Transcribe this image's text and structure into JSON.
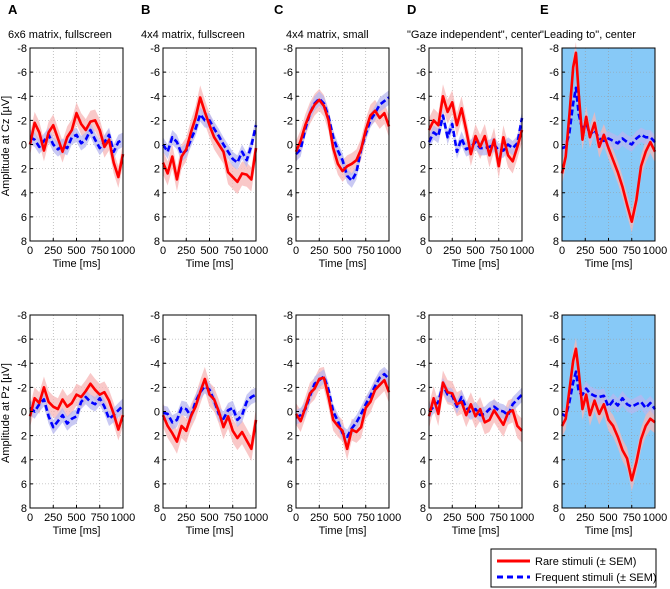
{
  "figure": {
    "row_labels": [
      "Amplitude at Cz [µV]",
      "Amplitude at Pz [µV]"
    ],
    "xlabel": "Time [ms]",
    "y_ticks": [
      "-8",
      "-6",
      "-4",
      "-2",
      "0",
      "2",
      "4",
      "6",
      "8"
    ],
    "x_ticks": [
      "0",
      "250",
      "500",
      "750",
      "1000"
    ],
    "panels": [
      {
        "letter": "A",
        "title": "6x6 matrix, fullscreen"
      },
      {
        "letter": "B",
        "title": "4x4 matrix, fullscreen"
      },
      {
        "letter": "C",
        "title": "4x4 matrix, small"
      },
      {
        "letter": "D",
        "title": "\"Gaze independent\", center"
      },
      {
        "letter": "E",
        "title": "\"Leading to\", center"
      }
    ],
    "legend": {
      "rare": "Rare stimuli (± SEM)",
      "frequent": "Frequent stimuli (± SEM)"
    }
  },
  "colors": {
    "rare": "#ff0000",
    "rare_sem": "#f7b5b5",
    "frequent": "#0000ff",
    "frequent_sem": "#b7b7ef",
    "highlight_bg": "#87c9f7",
    "grid": "#9a9a9a"
  },
  "chart_data": [
    {
      "type": "line",
      "panel": "A",
      "row": "Cz",
      "xlim": [
        0,
        1000
      ],
      "ylim": [
        -8,
        8
      ],
      "y_reversed": true,
      "grid": true,
      "x": [
        0,
        50,
        100,
        150,
        200,
        250,
        300,
        350,
        400,
        450,
        500,
        550,
        600,
        650,
        700,
        750,
        800,
        850,
        900,
        950,
        1000
      ],
      "series": [
        {
          "name": "Rare stimuli",
          "values": [
            0,
            -1.8,
            -1,
            0.5,
            -1,
            -1.6,
            -0.5,
            0.6,
            -0.6,
            -1.2,
            -2.6,
            -1.7,
            -1.2,
            -1.9,
            -2,
            -1.2,
            0.2,
            -0.4,
            1.5,
            2.7,
            0.8
          ],
          "sem": 0.9
        },
        {
          "name": "Frequent stimuli",
          "values": [
            -0.6,
            -0.4,
            0.2,
            -0.3,
            -0.8,
            0,
            0.4,
            0.1,
            0.3,
            -0.6,
            -0.8,
            -0.1,
            -0.4,
            -1.2,
            -0.4,
            0.3,
            -0.2,
            -0.8,
            0.6,
            -0.2,
            -0.4
          ],
          "sem": 0.6
        }
      ]
    },
    {
      "type": "line",
      "panel": "B",
      "row": "Cz",
      "xlim": [
        0,
        1000
      ],
      "ylim": [
        -8,
        8
      ],
      "y_reversed": true,
      "grid": true,
      "x": [
        0,
        50,
        100,
        150,
        200,
        250,
        300,
        350,
        400,
        450,
        500,
        550,
        600,
        650,
        700,
        750,
        800,
        850,
        900,
        950,
        1000
      ],
      "series": [
        {
          "name": "Rare stimuli",
          "values": [
            1.5,
            2.4,
            1,
            2.9,
            1,
            0.4,
            -1,
            -2.2,
            -3.9,
            -2.7,
            -1.6,
            -0.6,
            0,
            0.6,
            2.3,
            2.7,
            3.1,
            2.4,
            2.5,
            2.9,
            0.3
          ],
          "sem": 1.0
        },
        {
          "name": "Frequent stimuli",
          "values": [
            0,
            0.6,
            -0.6,
            -0.2,
            0.8,
            0.5,
            -0.4,
            -1.3,
            -2.5,
            -2,
            -2,
            -1.3,
            -0.7,
            0,
            0.6,
            1.2,
            1.5,
            0.6,
            1.3,
            0.1,
            -1.6
          ],
          "sem": 0.6
        }
      ]
    },
    {
      "type": "line",
      "panel": "C",
      "row": "Cz",
      "xlim": [
        0,
        1000
      ],
      "ylim": [
        -8,
        8
      ],
      "y_reversed": true,
      "grid": true,
      "x": [
        0,
        50,
        100,
        150,
        200,
        250,
        300,
        350,
        400,
        450,
        500,
        550,
        600,
        650,
        700,
        750,
        800,
        850,
        900,
        950,
        1000
      ],
      "series": [
        {
          "name": "Rare stimuli",
          "values": [
            0.6,
            -0.3,
            -1.6,
            -2.6,
            -3.3,
            -3.7,
            -3.2,
            -2,
            0.3,
            1.6,
            2.2,
            1.8,
            1.6,
            1.3,
            0.4,
            -1.2,
            -2.4,
            -2.8,
            -2.2,
            -2.6,
            -1.5
          ],
          "sem": 0.9
        },
        {
          "name": "Frequent stimuli",
          "values": [
            0.8,
            0.4,
            -1.3,
            -2.6,
            -3.4,
            -3.8,
            -3.4,
            -2.3,
            -0.6,
            0.5,
            1.3,
            2.6,
            3,
            2.3,
            0.4,
            -0.9,
            -2,
            -2.6,
            -3.3,
            -3.6,
            -3.9
          ],
          "sem": 0.6
        }
      ]
    },
    {
      "type": "line",
      "panel": "D",
      "row": "Cz",
      "xlim": [
        0,
        1000
      ],
      "ylim": [
        -8,
        8
      ],
      "y_reversed": true,
      "grid": true,
      "x": [
        0,
        50,
        100,
        150,
        200,
        250,
        300,
        350,
        400,
        450,
        500,
        550,
        600,
        650,
        700,
        750,
        800,
        850,
        900,
        950,
        1000
      ],
      "series": [
        {
          "name": "Rare stimuli",
          "values": [
            -1.2,
            -2,
            -1.6,
            -4,
            -2.7,
            -3.5,
            -1.6,
            -3,
            -1.2,
            0.8,
            -0.7,
            0.2,
            -0.7,
            0.9,
            -0.4,
            1.8,
            -0.6,
            0.9,
            1.4,
            0.2,
            -1.2
          ],
          "sem": 1.0
        },
        {
          "name": "Frequent stimuli",
          "values": [
            -0.2,
            -1,
            -0.7,
            -2.4,
            -0.6,
            -1.7,
            0.6,
            -0.5,
            0.4,
            0.2,
            -0.2,
            0.3,
            0.3,
            0.2,
            0,
            0.5,
            0.5,
            0,
            0.3,
            -0.1,
            -2.2
          ],
          "sem": 0.6
        }
      ]
    },
    {
      "type": "line",
      "panel": "E",
      "row": "Cz",
      "xlim": [
        0,
        1000
      ],
      "ylim": [
        -8,
        8
      ],
      "y_reversed": true,
      "grid": true,
      "highlighted": true,
      "x": [
        0,
        40,
        80,
        120,
        150,
        180,
        220,
        260,
        300,
        350,
        400,
        450,
        500,
        550,
        600,
        650,
        700,
        750,
        800,
        850,
        900,
        950,
        1000
      ],
      "series": [
        {
          "name": "Rare stimuli",
          "values": [
            2.4,
            1,
            -2.5,
            -6.4,
            -7.6,
            -4.2,
            -0.4,
            -2.3,
            -0.6,
            -1.8,
            0.2,
            -0.8,
            0.3,
            1.3,
            2.3,
            3.5,
            5,
            6.4,
            4.6,
            1.8,
            0.6,
            -0.2,
            0.6
          ],
          "sem": 0.9
        },
        {
          "name": "Frequent stimuli",
          "values": [
            0.3,
            0.2,
            -1,
            -3.4,
            -4.7,
            -2.5,
            -1.2,
            -1.8,
            -0.8,
            -1.2,
            -0.5,
            -0.3,
            -0.5,
            -0.3,
            -0.1,
            -0.5,
            -0.2,
            0,
            -0.5,
            -0.8,
            -0.6,
            -0.6,
            -0.2
          ],
          "sem": 0.6
        }
      ]
    },
    {
      "type": "line",
      "panel": "A",
      "row": "Pz",
      "xlim": [
        0,
        1000
      ],
      "ylim": [
        -8,
        8
      ],
      "y_reversed": true,
      "grid": true,
      "x": [
        0,
        50,
        100,
        150,
        200,
        250,
        300,
        350,
        400,
        450,
        500,
        550,
        600,
        650,
        700,
        750,
        800,
        850,
        900,
        950,
        1000
      ],
      "series": [
        {
          "name": "Rare stimuli",
          "values": [
            0.4,
            -1.1,
            -0.7,
            -2,
            -0.8,
            -0.4,
            -0.2,
            -1,
            -0.4,
            -0.7,
            -1.4,
            -1.2,
            -1.7,
            -2.3,
            -1.8,
            -1.4,
            -1.6,
            -0.9,
            0.2,
            1.5,
            0.3
          ],
          "sem": 0.9
        },
        {
          "name": "Frequent stimuli",
          "values": [
            -0.3,
            0,
            -0.6,
            -1,
            0.4,
            1.3,
            0.8,
            0.3,
            1,
            0.6,
            0.4,
            -0.8,
            -1.2,
            -0.8,
            -0.6,
            -1.1,
            -0.4,
            0.6,
            0.3,
            -0.1,
            -0.5
          ],
          "sem": 0.6
        }
      ]
    },
    {
      "type": "line",
      "panel": "B",
      "row": "Pz",
      "xlim": [
        0,
        1000
      ],
      "ylim": [
        -8,
        8
      ],
      "y_reversed": true,
      "grid": true,
      "x": [
        0,
        50,
        100,
        150,
        200,
        250,
        300,
        350,
        400,
        450,
        500,
        550,
        600,
        650,
        700,
        750,
        800,
        850,
        900,
        950,
        1000
      ],
      "series": [
        {
          "name": "Rare stimuli",
          "values": [
            0.3,
            1.2,
            1.8,
            2.5,
            1.2,
            1.6,
            0.4,
            -0.4,
            -1.6,
            -2.7,
            -1.4,
            -1,
            0,
            1.3,
            0.4,
            1.6,
            2.2,
            1.7,
            2.4,
            3.1,
            0.7
          ],
          "sem": 1.0
        },
        {
          "name": "Frequent stimuli",
          "values": [
            0.1,
            0.2,
            0.9,
            0.7,
            -0.3,
            -0.2,
            0.4,
            -0.8,
            -1.6,
            -2.1,
            -1.8,
            -0.9,
            0.2,
            0.6,
            -0.1,
            -0.3,
            0.7,
            0.3,
            -0.8,
            -1.2,
            -1.4
          ],
          "sem": 0.6
        }
      ]
    },
    {
      "type": "line",
      "panel": "C",
      "row": "Pz",
      "xlim": [
        0,
        1000
      ],
      "ylim": [
        -8,
        8
      ],
      "y_reversed": true,
      "grid": true,
      "x": [
        0,
        50,
        100,
        150,
        200,
        250,
        300,
        350,
        400,
        450,
        500,
        550,
        600,
        650,
        700,
        750,
        800,
        850,
        900,
        950,
        1000
      ],
      "series": [
        {
          "name": "Rare stimuli",
          "values": [
            0.2,
            0.8,
            -0.3,
            -1.5,
            -1.9,
            -2.7,
            -2.8,
            -1.2,
            0.7,
            1.2,
            1.6,
            3.1,
            1.5,
            1.7,
            1.3,
            -0.3,
            -0.8,
            -1.8,
            -2.2,
            -2.6,
            -1.6
          ],
          "sem": 0.9
        },
        {
          "name": "Frequent stimuli",
          "values": [
            0.5,
            0.3,
            -0.2,
            -1.3,
            -2.3,
            -2.6,
            -2.9,
            -1.8,
            0,
            0.8,
            1.8,
            2.1,
            1.4,
            0.9,
            0.2,
            -0.6,
            -1.3,
            -2.1,
            -2.8,
            -3.1,
            -2.7
          ],
          "sem": 0.6
        }
      ]
    },
    {
      "type": "line",
      "panel": "D",
      "row": "Pz",
      "xlim": [
        0,
        1000
      ],
      "ylim": [
        -8,
        8
      ],
      "y_reversed": true,
      "grid": true,
      "x": [
        0,
        50,
        100,
        150,
        200,
        250,
        300,
        350,
        400,
        450,
        500,
        550,
        600,
        650,
        700,
        750,
        800,
        850,
        900,
        950,
        1000
      ],
      "series": [
        {
          "name": "Rare stimuli",
          "values": [
            0.4,
            -1.1,
            0.2,
            -2.4,
            -1.6,
            -1.5,
            -0.6,
            -0.8,
            0.3,
            -0.6,
            0.4,
            -0.2,
            0.9,
            0.7,
            -0.1,
            0.5,
            1.1,
            0.1,
            -0.1,
            1.2,
            1.6
          ],
          "sem": 1.0
        },
        {
          "name": "Frequent stimuli",
          "values": [
            0,
            -0.4,
            -0.8,
            -2.2,
            -1.4,
            -1.3,
            -0.4,
            -1.2,
            -0.3,
            0.1,
            -0.2,
            0.3,
            0.2,
            -0.2,
            -0.4,
            -0.1,
            0,
            0.3,
            -0.6,
            -1,
            -1.4
          ],
          "sem": 0.6
        }
      ]
    },
    {
      "type": "line",
      "panel": "E",
      "row": "Pz",
      "xlim": [
        0,
        1000
      ],
      "ylim": [
        -8,
        8
      ],
      "y_reversed": true,
      "grid": true,
      "highlighted": true,
      "x": [
        0,
        40,
        80,
        120,
        150,
        180,
        220,
        260,
        300,
        350,
        400,
        450,
        500,
        550,
        600,
        650,
        700,
        750,
        800,
        850,
        900,
        950,
        1000
      ],
      "series": [
        {
          "name": "Rare stimuli",
          "values": [
            1.2,
            0.6,
            -1.8,
            -4.2,
            -5.2,
            -3.3,
            -0.2,
            -1.4,
            0.3,
            -0.9,
            0.2,
            -0.6,
            0.7,
            1.2,
            2.1,
            3.2,
            3.9,
            5.7,
            4.2,
            2.3,
            1.2,
            0.6,
            0.9
          ],
          "sem": 0.9
        },
        {
          "name": "Frequent stimuli",
          "values": [
            0.2,
            0.4,
            -0.8,
            -2.4,
            -3.3,
            -1.6,
            -1.4,
            -1.9,
            -1.5,
            -1.3,
            -1.2,
            -1.3,
            -0.4,
            -0.9,
            -0.5,
            -1.1,
            -0.6,
            -0.4,
            -0.6,
            -0.8,
            -0.3,
            -0.7,
            -0.2
          ],
          "sem": 0.6
        }
      ]
    }
  ]
}
